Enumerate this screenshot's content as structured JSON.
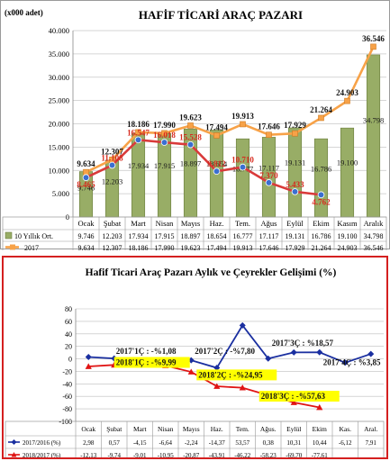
{
  "chart_data": [
    {
      "type": "bar+line",
      "title": "HAFİF TİCARİ ARAÇ PAZARI",
      "unit_label": "(x000 adet)",
      "categories": [
        "Ocak",
        "Şubat",
        "Mart",
        "Nisan",
        "Mayıs",
        "Haz.",
        "Tem.",
        "Ağus",
        "Eylül",
        "Ekim",
        "Kasım",
        "Aralık"
      ],
      "ylim": [
        0,
        40000
      ],
      "yticks": [
        "0",
        "5.000",
        "10.000",
        "15.000",
        "20.000",
        "25.000",
        "30.000",
        "35.000",
        "40.000"
      ],
      "grid": true,
      "series": [
        {
          "name": "10 Yıllık Ort.",
          "kind": "bar",
          "color": "#8aa05a",
          "values": [
            9746,
            12203,
            17934,
            17915,
            18897,
            18654,
            16777,
            17117,
            19131,
            16786,
            19100,
            34798
          ],
          "labels": [
            "9.746",
            "12.203",
            "17.934",
            "17.915",
            "18.897",
            "18.654",
            "16.777",
            "17.117",
            "19.131",
            "16.786",
            "19.100",
            "34.798"
          ]
        },
        {
          "name": "2017",
          "kind": "line",
          "color": "#f7a248",
          "values": [
            9634,
            12307,
            18186,
            17990,
            19623,
            17494,
            19913,
            17646,
            17929,
            21264,
            24903,
            36546
          ],
          "labels": [
            "9.634",
            "12.307",
            "18.186",
            "17.990",
            "19.623",
            "17.494",
            "19.913",
            "17.646",
            "17.929",
            "21.264",
            "24.903",
            "36.546"
          ]
        },
        {
          "name": "2018",
          "kind": "line",
          "color": "#d93a3a",
          "values": [
            8465,
            11108,
            16547,
            16018,
            15528,
            9812,
            10710,
            7370,
            5433,
            4762,
            null,
            null
          ],
          "labels": [
            "8.465",
            "11.108",
            "16.547",
            "16.018",
            "15.528",
            "9.812",
            "10.710",
            "7.370",
            "5.433",
            "4.762",
            "",
            ""
          ]
        }
      ],
      "table_rows": [
        [
          "9.746",
          "12.203",
          "17.934",
          "17.915",
          "18.897",
          "18.654",
          "16.777",
          "17.117",
          "19.131",
          "16.786",
          "19.100",
          "34.798"
        ],
        [
          "9.634",
          "12.307",
          "18.186",
          "17.990",
          "19.623",
          "17.494",
          "19.913",
          "17.646",
          "17.929",
          "21.264",
          "24.903",
          "36.546"
        ],
        [
          "8.465",
          "11.108",
          "16.547",
          "16.018",
          "15.528",
          "9.812",
          "10.710",
          "7.370",
          "5.433",
          "4.762",
          "",
          ""
        ]
      ]
    },
    {
      "type": "line",
      "title": "Hafif Ticari Araç Pazarı Aylık ve Çeyrekler Gelişimi (%)",
      "categories": [
        "Ocak",
        "Şubat",
        "Mart",
        "Nisan",
        "Mayıs",
        "Haz.",
        "Tem.",
        "Ağus.",
        "Eylül",
        "Ekim",
        "Kas.",
        "Aral."
      ],
      "ylim": [
        -100,
        80
      ],
      "yticks": [
        "-100",
        "-80",
        "-60",
        "-40",
        "-20",
        "0",
        "20",
        "40",
        "60",
        "80"
      ],
      "grid": true,
      "series": [
        {
          "name": "2017/2016 (%)",
          "color": "#1a2fa0",
          "values": [
            2.98,
            0.57,
            -4.15,
            -6.64,
            -2.24,
            -14.37,
            53.57,
            0.38,
            10.31,
            10.44,
            -6.12,
            7.91
          ],
          "labels": [
            "2,98",
            "0,57",
            "-4,15",
            "-6,64",
            "-2,24",
            "-14,37",
            "53,57",
            "0,38",
            "10,31",
            "10,44",
            "-6,12",
            "7,91"
          ]
        },
        {
          "name": "2018/2017 (%)",
          "color": "#e01414",
          "values": [
            -12.13,
            -9.74,
            -9.01,
            -10.95,
            -20.87,
            -43.91,
            -46.22,
            -58.23,
            -69.7,
            -77.61,
            null,
            null
          ],
          "labels": [
            "-12,13",
            "-9,74",
            "-9,01",
            "-10,95",
            "-20,87",
            "-43,91",
            "-46,22",
            "-58,23",
            "-69,70",
            "-77,61",
            "",
            ""
          ]
        }
      ],
      "annotations": [
        {
          "text": "2017'1Ç : -%1,08",
          "highlight": false
        },
        {
          "text": "2017'2Ç : -%7,80",
          "highlight": false
        },
        {
          "text": "2017'3Ç : %18,57",
          "highlight": false
        },
        {
          "text": "2017'4Ç : %3,85",
          "highlight": false
        },
        {
          "text": "2018'1Ç : -%9,99",
          "highlight": true
        },
        {
          "text": "2018'2Ç : -%24,95",
          "highlight": true
        },
        {
          "text": "2018'3Ç : -%57,63",
          "highlight": true
        }
      ]
    }
  ]
}
